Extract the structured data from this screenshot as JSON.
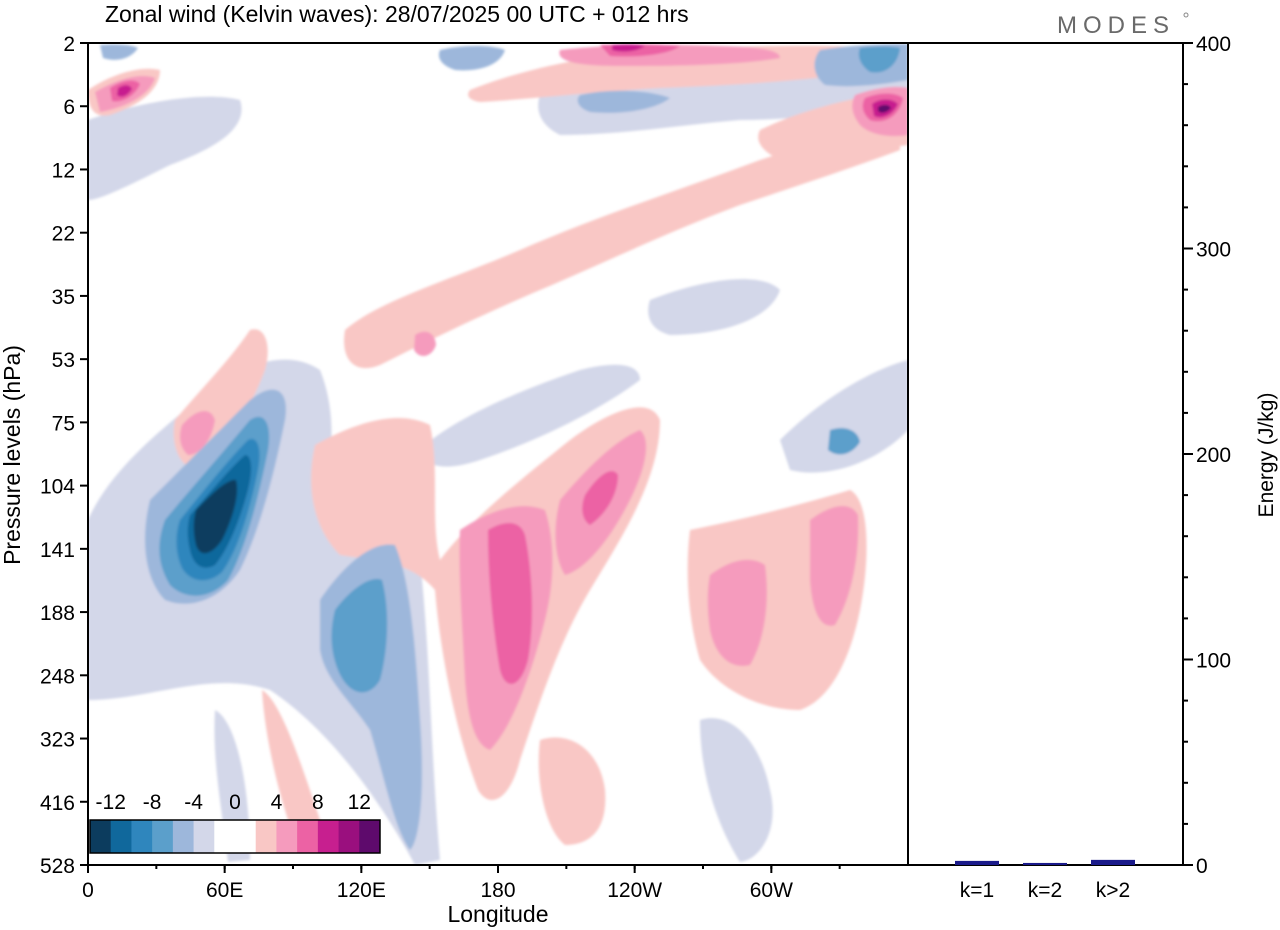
{
  "brand": "MODES",
  "chart_data": [
    {
      "type": "heatmap",
      "title": "Zonal wind (Kelvin waves):  28/07/2025  00 UTC  + 012 hrs",
      "xlabel": "Longitude",
      "ylabel": "Pressure levels (hPa)",
      "x_ticks": [
        "0",
        "60E",
        "120E",
        "180",
        "120W",
        "60W"
      ],
      "y_ticks": [
        "2",
        "6",
        "12",
        "22",
        "35",
        "53",
        "75",
        "104",
        "141",
        "188",
        "248",
        "323",
        "416",
        "528"
      ],
      "colorbar": {
        "tick_labels": [
          "-12",
          "-8",
          "-4",
          "0",
          "4",
          "8",
          "12"
        ],
        "colors": [
          "#0c3c5e",
          "#10689c",
          "#2f86bd",
          "#5b9fcb",
          "#9db7db",
          "#d3d7e9",
          "#ffffff",
          "#ffffff",
          "#f9c7c5",
          "#f59bbd",
          "#ec62a4",
          "#c71f8f",
          "#9a0f7e",
          "#5e0a6c"
        ]
      }
    },
    {
      "type": "bar",
      "categories": [
        "k=1",
        "k=2",
        "k>2"
      ],
      "values": [
        2,
        1,
        2.5
      ],
      "ylabel": "Energy (J/kg)",
      "y_ticks": [
        "0",
        "100",
        "200",
        "300",
        "400"
      ],
      "ylim": [
        0,
        400
      ],
      "bar_color": "#1a1a8a"
    }
  ]
}
